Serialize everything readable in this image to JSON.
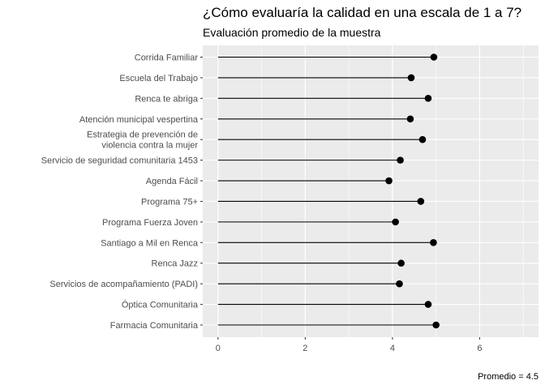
{
  "chart_data": {
    "type": "lollipop",
    "title": "¿Cómo evaluaría la calidad en una escala de 1 a 7?",
    "subtitle": "Evaluación promedio de la muestra",
    "caption": "Promedio =  4.5",
    "categories": [
      "Corrida Familiar",
      "Escuela del Trabajo",
      "Renca te abriga",
      "Atención municipal vespertina",
      "Estrategia de prevención de\nviolencia contra la mujer",
      "Servicio de seguridad comunitaria 1453",
      "Agenda Fácil",
      "Programa 75+",
      "Programa Fuerza Joven",
      "Santiago a Mil en Renca",
      "Renca Jazz",
      "Servicios de acompañamiento (PADI)",
      "Óptica Comunitaria",
      "Farmacia Comunitaria"
    ],
    "values": [
      4.95,
      4.43,
      4.82,
      4.41,
      4.69,
      4.18,
      3.92,
      4.65,
      4.07,
      4.94,
      4.2,
      4.16,
      4.82,
      5.0
    ],
    "x_ticks": [
      0,
      2,
      4,
      6
    ],
    "xlim": [
      -0.35,
      7.35
    ],
    "grid": true,
    "colors": {
      "panel": "#ebebeb",
      "grid": "#ffffff",
      "mark": "#000000"
    }
  }
}
